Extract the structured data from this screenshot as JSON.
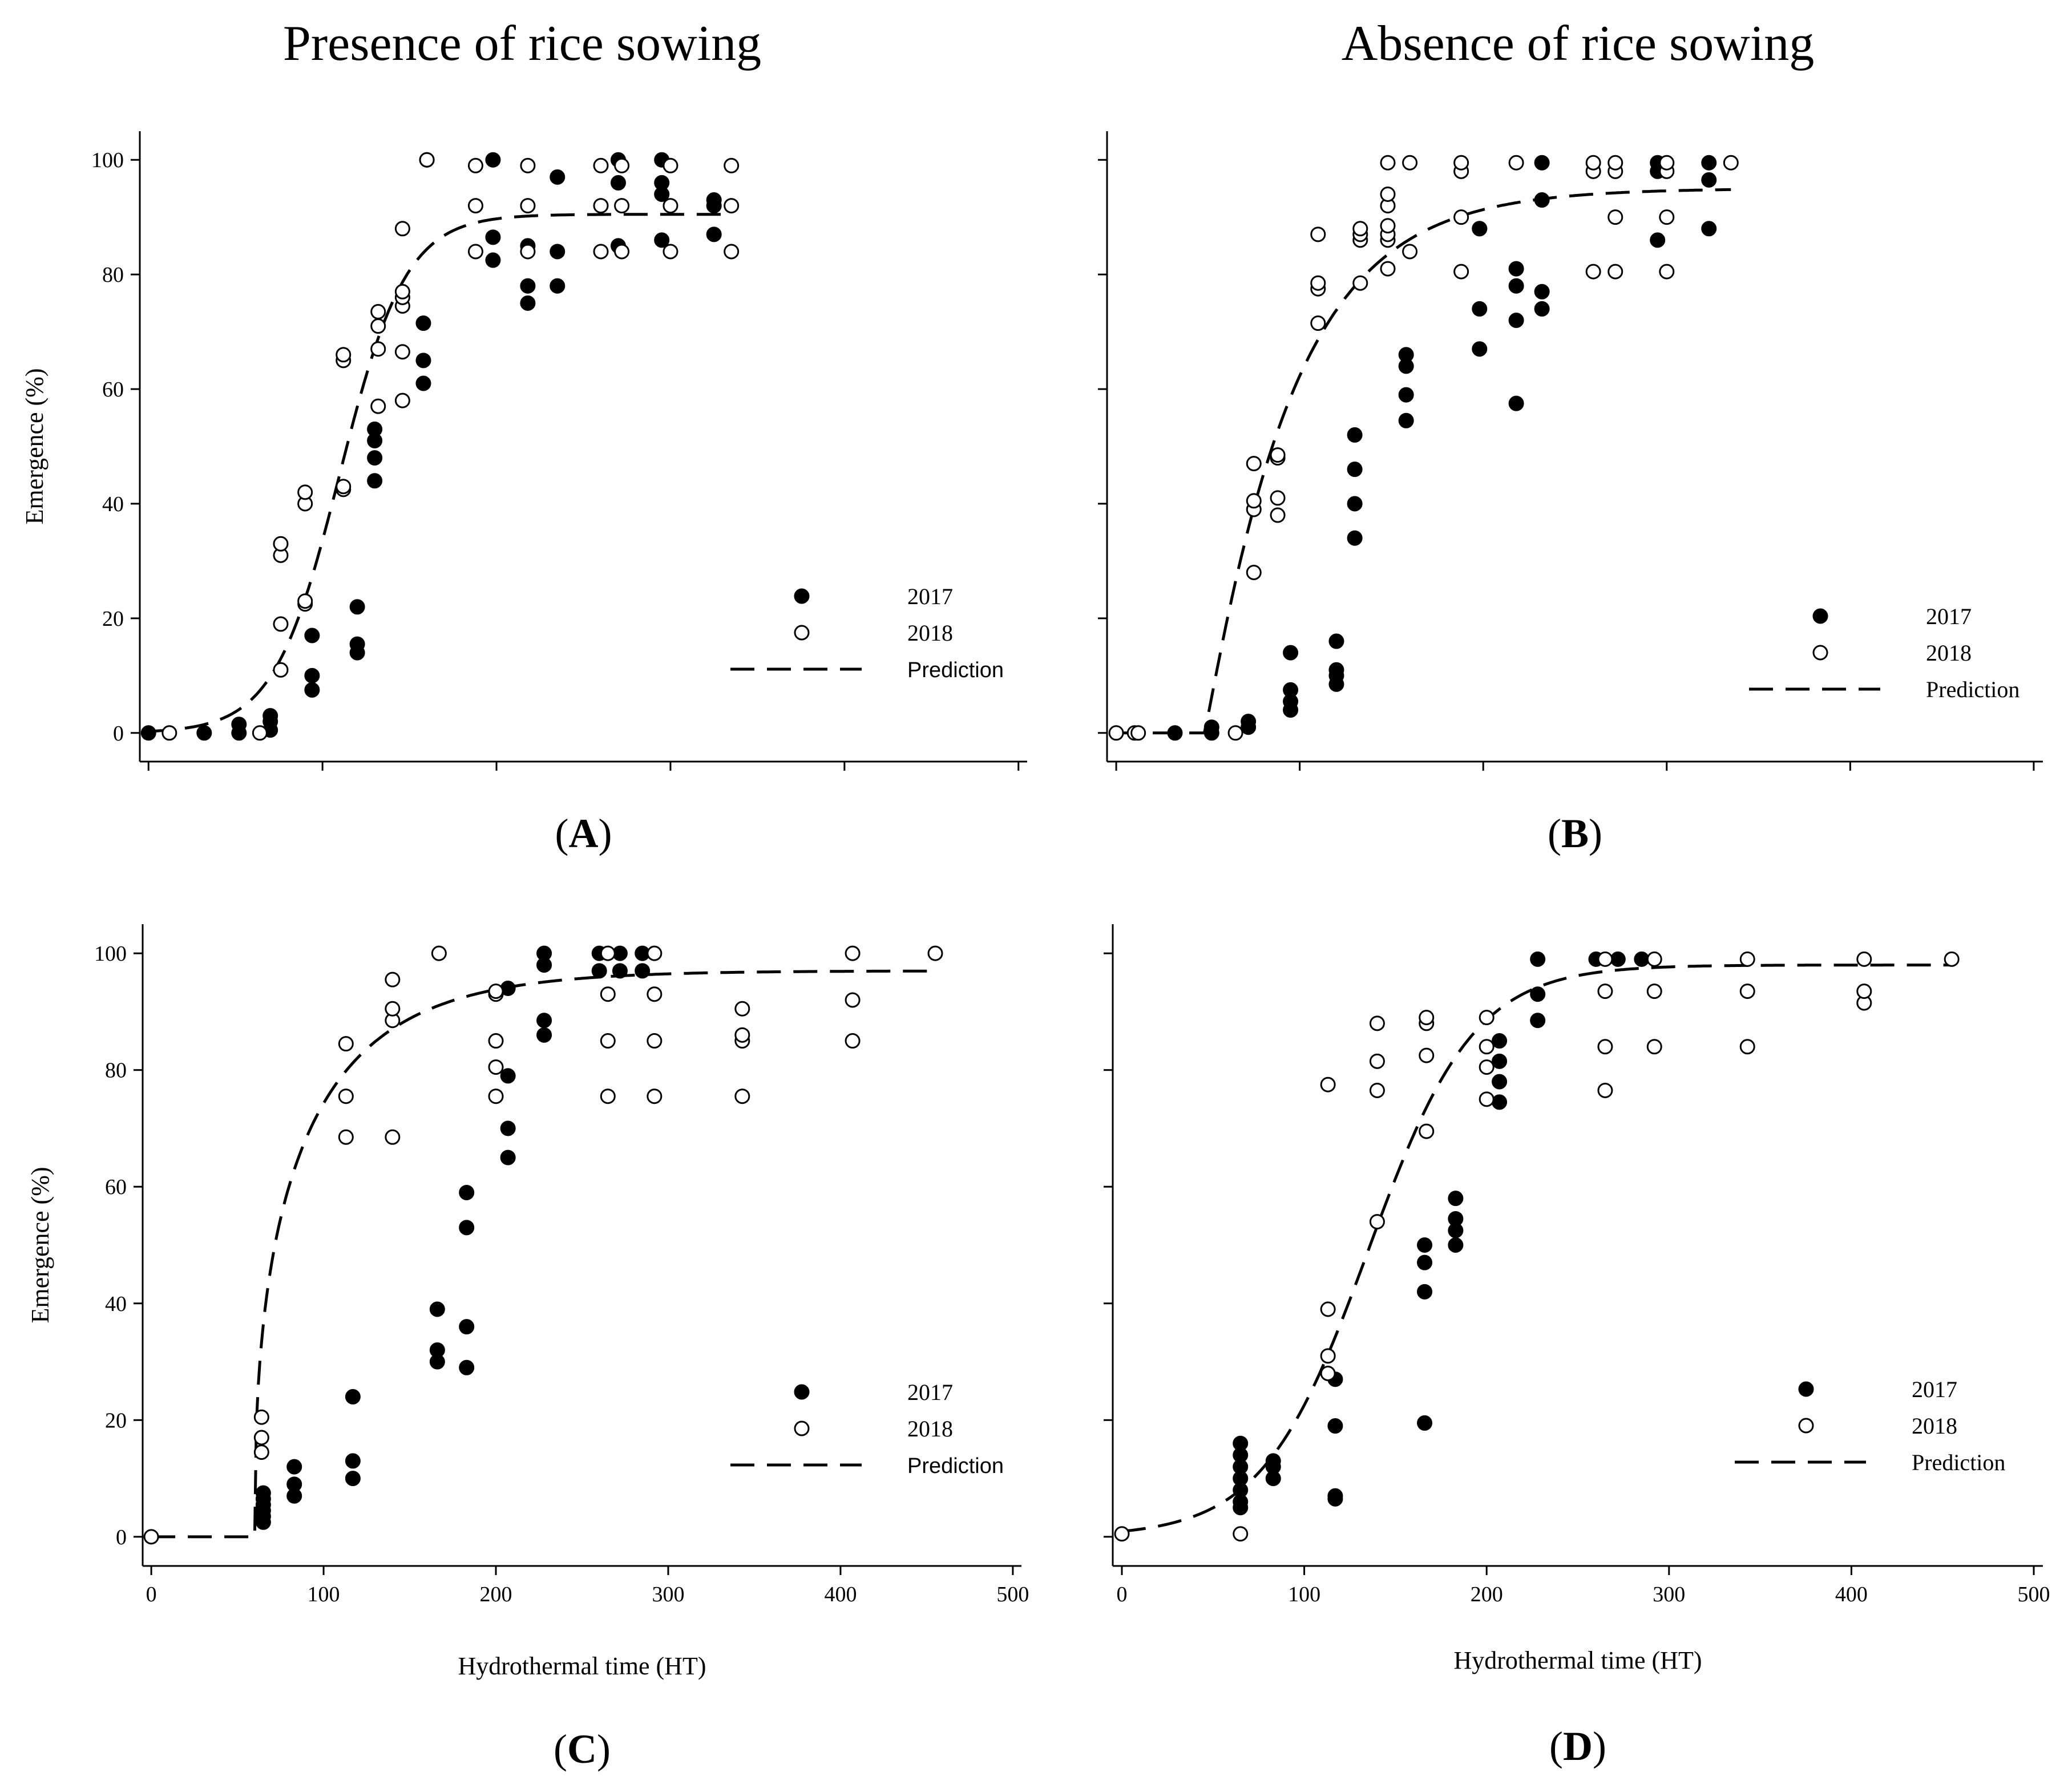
{
  "column_titles": [
    "Presence of rice sowing",
    "Absence of rice sowing"
  ],
  "chart_data": [
    {
      "type": "scatter",
      "panel_label": "A",
      "title": "",
      "xlabel": "",
      "ylabel": "Emergence (%)",
      "xlim": [
        -5,
        505
      ],
      "ylim": [
        -5,
        105
      ],
      "x_ticks": [
        0,
        100,
        200,
        300,
        400,
        500
      ],
      "x_tick_labels": [
        "",
        "",
        "",
        "",
        "",
        ""
      ],
      "y_ticks": [
        0,
        20,
        40,
        60,
        80,
        100
      ],
      "y_tick_labels": [
        "0",
        "20",
        "40",
        "60",
        "80",
        "100"
      ],
      "legend": [
        "2017",
        "2018",
        "Prediction"
      ],
      "legend_position": "bottom-right",
      "series": [
        {
          "name": "2017",
          "marker": "filled",
          "x": [
            0,
            32,
            52,
            52,
            70,
            70,
            70,
            94,
            94,
            94,
            120,
            120,
            120,
            130,
            130,
            130,
            130,
            158,
            158,
            158,
            160,
            198,
            198,
            198,
            218,
            218,
            218,
            235,
            235,
            235,
            270,
            270,
            270,
            295,
            295,
            295,
            295,
            325,
            325,
            325
          ],
          "y": [
            0,
            0,
            0,
            1.5,
            0.5,
            2,
            3,
            7.5,
            10,
            17,
            14,
            15.5,
            22,
            44,
            48,
            51,
            53,
            61,
            65,
            71.5,
            100,
            82.5,
            86.5,
            100,
            75,
            78,
            85,
            78,
            84,
            97,
            85,
            96,
            100,
            86,
            94,
            96,
            100,
            87,
            92,
            93
          ]
        },
        {
          "name": "2018",
          "marker": "open",
          "x": [
            12,
            64,
            76,
            76,
            76,
            76,
            90,
            90,
            90,
            90,
            112,
            112,
            112,
            112,
            132,
            132,
            132,
            132,
            146,
            146,
            146,
            146,
            146,
            146,
            160,
            188,
            188,
            188,
            218,
            218,
            218,
            260,
            260,
            260,
            272,
            272,
            272,
            300,
            300,
            300,
            335,
            335,
            335
          ],
          "y": [
            0,
            0,
            11,
            19,
            31,
            33,
            22.5,
            23,
            40,
            42,
            42.5,
            43,
            65,
            66,
            57,
            67,
            71,
            73.5,
            58,
            66.5,
            74.5,
            76,
            77,
            88,
            100,
            84,
            92,
            99,
            84,
            92,
            99,
            84,
            92,
            99,
            84,
            92,
            99,
            84,
            92,
            99,
            84,
            92,
            99
          ]
        }
      ],
      "prediction": {
        "model": "sigmoid",
        "upper": 90.5,
        "midpoint": 110,
        "scale": 19,
        "x_range": [
          0,
          335
        ]
      }
    },
    {
      "type": "scatter",
      "panel_label": "B",
      "title": "",
      "xlabel": "",
      "ylabel": "",
      "xlim": [
        -5,
        505
      ],
      "ylim": [
        -5,
        105
      ],
      "x_ticks": [
        0,
        100,
        200,
        300,
        400,
        500
      ],
      "x_tick_labels": [
        "",
        "",
        "",
        "",
        "",
        ""
      ],
      "y_ticks": [
        0,
        20,
        40,
        60,
        80,
        100
      ],
      "y_tick_labels": [
        "",
        "",
        "",
        "",
        "",
        ""
      ],
      "legend": [
        "2017",
        "2018",
        "Prediction"
      ],
      "legend_position": "bottom-right",
      "series": [
        {
          "name": "2017",
          "marker": "filled",
          "x": [
            32,
            52,
            52,
            72,
            72,
            95,
            95,
            95,
            95,
            120,
            120,
            120,
            120,
            130,
            130,
            130,
            130,
            158,
            158,
            158,
            158,
            198,
            198,
            198,
            198,
            218,
            218,
            218,
            218,
            232,
            232,
            232,
            232,
            295,
            295,
            295,
            323,
            323,
            323
          ],
          "y": [
            0,
            0,
            1,
            1,
            2,
            4,
            5.5,
            7.5,
            14,
            8.5,
            10,
            11,
            16,
            34,
            40,
            46,
            52,
            54.5,
            59,
            64,
            66,
            67,
            74,
            88,
            88,
            57.5,
            72,
            78,
            81,
            74,
            77,
            93,
            99.5,
            86,
            98,
            99.5,
            88,
            96.5,
            99.5
          ]
        },
        {
          "name": "2018",
          "marker": "open",
          "x": [
            0,
            10,
            12,
            65,
            75,
            75,
            75,
            75,
            88,
            88,
            88,
            88,
            110,
            110,
            110,
            110,
            133,
            133,
            133,
            133,
            148,
            148,
            148,
            148,
            148,
            148,
            148,
            160,
            160,
            188,
            188,
            188,
            188,
            218,
            260,
            260,
            260,
            272,
            272,
            272,
            272,
            300,
            300,
            300,
            300,
            335
          ],
          "y": [
            0,
            0,
            0,
            0,
            28,
            39,
            40.5,
            47,
            38,
            41,
            48,
            48.5,
            71.5,
            77.5,
            78.5,
            87,
            78.5,
            86,
            87,
            88,
            81,
            86,
            87,
            88.5,
            92,
            94,
            99.5,
            84,
            99.5,
            80.5,
            90,
            98,
            99.5,
            99.5,
            80.5,
            98,
            99.5,
            80.5,
            90,
            98,
            99.5,
            80.5,
            90,
            98,
            99.5,
            99.5
          ]
        }
      ],
      "prediction": {
        "model": "gompertz",
        "upper": 95,
        "x0": 48,
        "b": 0.022,
        "c": 1.1,
        "x_range": [
          0,
          335
        ]
      }
    },
    {
      "type": "scatter",
      "panel_label": "C",
      "title": "",
      "xlabel": "Hydrothermal time (HT)",
      "ylabel": "Emergence (%)",
      "xlim": [
        -5,
        505
      ],
      "ylim": [
        -5,
        105
      ],
      "x_ticks": [
        0,
        100,
        200,
        300,
        400,
        500
      ],
      "x_tick_labels": [
        "0",
        "100",
        "200",
        "300",
        "400",
        "500"
      ],
      "y_ticks": [
        0,
        20,
        40,
        60,
        80,
        100
      ],
      "y_tick_labels": [
        "0",
        "20",
        "40",
        "60",
        "80",
        "100"
      ],
      "legend": [
        "2017",
        "2018",
        "Prediction"
      ],
      "legend_position": "bottom-right",
      "series": [
        {
          "name": "2017",
          "marker": "filled",
          "x": [
            65,
            65,
            65,
            65,
            65,
            65,
            83,
            83,
            83,
            117,
            117,
            117,
            166,
            166,
            166,
            183,
            183,
            183,
            183,
            207,
            207,
            207,
            207,
            228,
            228,
            228,
            228,
            260,
            260,
            272,
            272,
            285,
            285
          ],
          "y": [
            2.5,
            3.5,
            4.5,
            5.5,
            6.5,
            7.5,
            7,
            9,
            12,
            10,
            13,
            24,
            30,
            32,
            39,
            29,
            36,
            53,
            59,
            65,
            70,
            79,
            94,
            86,
            88.5,
            98,
            100,
            97,
            100,
            97,
            100,
            97,
            100
          ]
        },
        {
          "name": "2018",
          "marker": "open",
          "x": [
            0,
            64,
            64,
            64,
            113,
            113,
            113,
            140,
            140,
            140,
            140,
            167,
            200,
            200,
            200,
            200,
            200,
            265,
            265,
            265,
            265,
            292,
            292,
            292,
            292,
            343,
            343,
            343,
            343,
            407,
            407,
            407,
            455
          ],
          "y": [
            0,
            14.5,
            17,
            20.5,
            68.5,
            75.5,
            84.5,
            68.5,
            88.5,
            90.5,
            95.5,
            100,
            75.5,
            80.5,
            85,
            93,
            93.5,
            75.5,
            85,
            93,
            100,
            75.5,
            85,
            93,
            100,
            75.5,
            85,
            86,
            90.5,
            85,
            92,
            100,
            100
          ]
        }
      ],
      "prediction": {
        "model": "gompertz",
        "upper": 97,
        "x0": 60,
        "b": 0.018,
        "c": 0.4,
        "x_range": [
          0,
          455
        ]
      }
    },
    {
      "type": "scatter",
      "panel_label": "D",
      "title": "",
      "xlabel": "Hydrothermal time (HT)",
      "ylabel": "",
      "xlim": [
        -5,
        505
      ],
      "ylim": [
        -5,
        105
      ],
      "x_ticks": [
        0,
        100,
        200,
        300,
        400,
        500
      ],
      "x_tick_labels": [
        "0",
        "100",
        "200",
        "300",
        "400",
        "500"
      ],
      "y_ticks": [
        0,
        20,
        40,
        60,
        80,
        100
      ],
      "y_tick_labels": [
        "",
        "",
        "",
        "",
        "",
        ""
      ],
      "legend": [
        "2017",
        "2018",
        "Prediction"
      ],
      "legend_position": "bottom-right",
      "series": [
        {
          "name": "2017",
          "marker": "filled",
          "x": [
            65,
            65,
            65,
            65,
            65,
            65,
            65,
            83,
            83,
            83,
            117,
            117,
            117,
            117,
            166,
            166,
            166,
            166,
            183,
            183,
            183,
            183,
            207,
            207,
            207,
            207,
            228,
            228,
            228,
            260,
            272,
            285
          ],
          "y": [
            5,
            6,
            8,
            10,
            12,
            14,
            16,
            10,
            12,
            13,
            6.5,
            7,
            19,
            27,
            19.5,
            42,
            47,
            50,
            50,
            52.5,
            54.5,
            58,
            74.5,
            78,
            81.5,
            85,
            88.5,
            93,
            99,
            99,
            99,
            99
          ]
        },
        {
          "name": "2018",
          "marker": "open",
          "x": [
            0,
            65,
            113,
            113,
            113,
            113,
            140,
            140,
            140,
            140,
            167,
            167,
            167,
            167,
            200,
            200,
            200,
            200,
            265,
            265,
            265,
            265,
            292,
            292,
            292,
            343,
            343,
            343,
            407,
            407,
            407,
            455
          ],
          "y": [
            0.5,
            0.5,
            28,
            31,
            39,
            77.5,
            54,
            76.5,
            81.5,
            88,
            69.5,
            82.5,
            88,
            89,
            75,
            80.5,
            84,
            89,
            76.5,
            84,
            93.5,
            99,
            84,
            93.5,
            99,
            84,
            93.5,
            99,
            91.5,
            93.5,
            99,
            99
          ]
        }
      ],
      "prediction": {
        "model": "sigmoid",
        "upper": 98,
        "midpoint": 135,
        "scale": 29,
        "x_range": [
          0,
          455
        ]
      }
    }
  ]
}
